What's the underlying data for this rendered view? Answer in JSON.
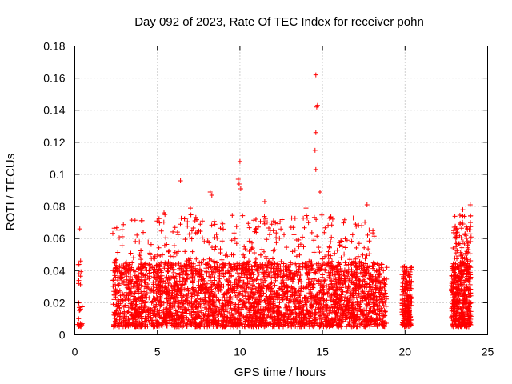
{
  "chart_data": {
    "type": "scatter",
    "title": "Day 092 of 2023, Rate Of TEC Index for receiver pohn",
    "xlabel": "GPS time / hours",
    "ylabel": "ROTI / TECUs",
    "xlim": [
      0,
      25
    ],
    "ylim": [
      0,
      0.18
    ],
    "x_ticks": [
      0,
      5,
      10,
      15,
      20,
      25
    ],
    "x_tick_labels": [
      "0",
      "5",
      "10",
      "15",
      "20",
      "25"
    ],
    "y_ticks": [
      0,
      0.02,
      0.04,
      0.06,
      0.08,
      0.1,
      0.12,
      0.14,
      0.16,
      0.18
    ],
    "y_tick_labels": [
      "0",
      "0.02",
      "0.04",
      "0.06",
      "0.08",
      "0.1",
      "0.12",
      "0.14",
      "0.16",
      "0.18"
    ],
    "grid": true,
    "marker": "+",
    "color": "#ff0000",
    "series": [
      {
        "name": "ROTI",
        "outliers": [
          {
            "x": 14.6,
            "y": 0.162
          },
          {
            "x": 14.65,
            "y": 0.142
          },
          {
            "x": 14.7,
            "y": 0.143
          },
          {
            "x": 14.6,
            "y": 0.126
          },
          {
            "x": 14.55,
            "y": 0.115
          },
          {
            "x": 14.6,
            "y": 0.103
          },
          {
            "x": 14.85,
            "y": 0.089
          },
          {
            "x": 10.0,
            "y": 0.108
          },
          {
            "x": 9.9,
            "y": 0.097
          },
          {
            "x": 9.95,
            "y": 0.094
          },
          {
            "x": 10.05,
            "y": 0.091
          },
          {
            "x": 6.4,
            "y": 0.096
          },
          {
            "x": 11.5,
            "y": 0.083
          },
          {
            "x": 8.2,
            "y": 0.089
          },
          {
            "x": 8.3,
            "y": 0.087
          },
          {
            "x": 0.3,
            "y": 0.066
          },
          {
            "x": 0.35,
            "y": 0.046
          },
          {
            "x": 23.95,
            "y": 0.081
          },
          {
            "x": 23.5,
            "y": 0.078
          },
          {
            "x": 17.7,
            "y": 0.081
          },
          {
            "x": 14.0,
            "y": 0.079
          },
          {
            "x": 7.0,
            "y": 0.079
          },
          {
            "x": 5.4,
            "y": 0.076
          }
        ],
        "clusters": [
          {
            "x_start": 0.15,
            "x_end": 0.45,
            "y_low": 0.005,
            "y_high": 0.02,
            "n": 18
          },
          {
            "x_start": 0.2,
            "x_end": 0.4,
            "y_low": 0.03,
            "y_high": 0.045,
            "n": 8
          },
          {
            "x_start": 2.3,
            "x_end": 18.9,
            "y_low": 0.005,
            "y_high": 0.045,
            "n": 3200
          },
          {
            "x_start": 2.3,
            "x_end": 18.2,
            "y_low": 0.04,
            "y_high": 0.075,
            "n": 380
          },
          {
            "x_start": 19.8,
            "x_end": 20.4,
            "y_low": 0.005,
            "y_high": 0.043,
            "n": 220
          },
          {
            "x_start": 22.8,
            "x_end": 24.0,
            "y_low": 0.005,
            "y_high": 0.045,
            "n": 420
          },
          {
            "x_start": 22.9,
            "x_end": 24.0,
            "y_low": 0.045,
            "y_high": 0.075,
            "n": 80
          }
        ]
      }
    ]
  }
}
